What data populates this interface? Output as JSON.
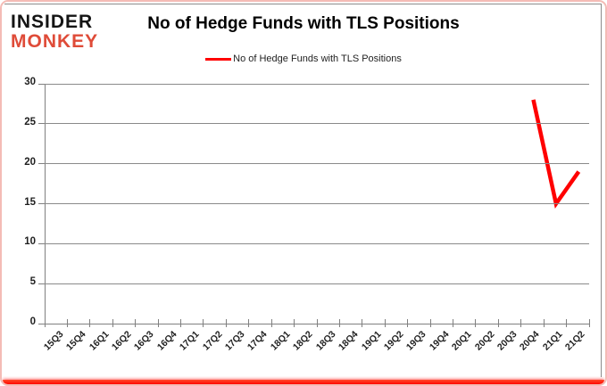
{
  "logo": {
    "line1": "INSIDER",
    "line2": "MONKEY"
  },
  "chart_data": {
    "type": "line",
    "title": "No of Hedge Funds with TLS Positions",
    "categories": [
      "15Q3",
      "15Q4",
      "16Q1",
      "16Q2",
      "16Q3",
      "16Q4",
      "17Q1",
      "17Q2",
      "17Q3",
      "17Q4",
      "18Q1",
      "18Q2",
      "18Q3",
      "18Q4",
      "19Q1",
      "19Q2",
      "19Q3",
      "19Q4",
      "20Q1",
      "20Q2",
      "20Q3",
      "20Q4",
      "21Q1",
      "21Q2"
    ],
    "series": [
      {
        "name": "No of Hedge Funds with TLS Positions",
        "color": "#ff0000",
        "values": [
          null,
          null,
          null,
          null,
          null,
          null,
          null,
          null,
          null,
          null,
          null,
          null,
          null,
          null,
          null,
          null,
          null,
          null,
          null,
          null,
          null,
          28,
          15,
          19
        ]
      }
    ],
    "ylim": [
      0,
      30
    ],
    "ytick_step": 5,
    "grid": true,
    "legend_position": "top-center",
    "xlabel": "",
    "ylabel": ""
  },
  "colors": {
    "series_red": "#ff0000",
    "gridline_gray": "#8a8a8a",
    "axis_gray": "#808080",
    "tick_label": "#1f1f1f",
    "logo_black": "#141414",
    "logo_red": "#df4b38",
    "card_border_pink": "#f4bcb6",
    "card_bottom_red": "#ff0800",
    "chart_border_gray": "#8c8c8c"
  }
}
